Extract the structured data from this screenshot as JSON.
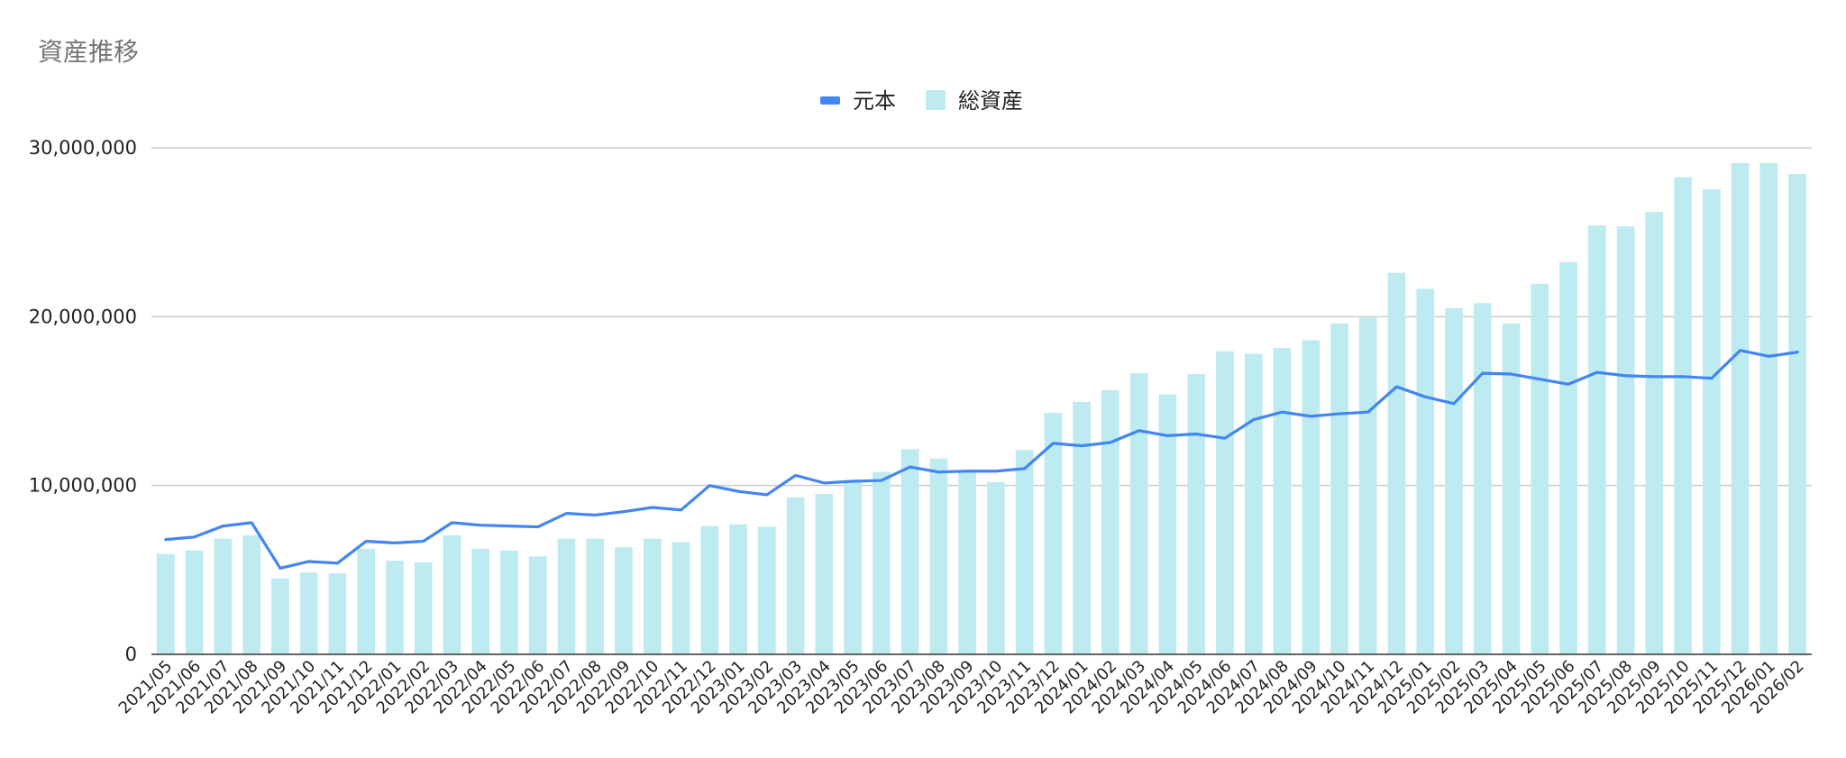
{
  "chart_data": {
    "type": "bar",
    "title": "資産推移",
    "xlabel": "",
    "ylabel": "",
    "ylim": [
      0,
      30000000
    ],
    "yticks": [
      0,
      10000000,
      20000000,
      30000000
    ],
    "ytick_labels": [
      "0",
      "10,000,000",
      "20,000,000",
      "30,000,000"
    ],
    "grid": true,
    "legend_position": "top",
    "categories": [
      "2021/05",
      "2021/06",
      "2021/07",
      "2021/08",
      "2021/09",
      "2021/10",
      "2021/11",
      "2021/12",
      "2022/01",
      "2022/02",
      "2022/03",
      "2022/04",
      "2022/05",
      "2022/06",
      "2022/07",
      "2022/08",
      "2022/09",
      "2022/10",
      "2022/11",
      "2022/12",
      "2023/01",
      "2023/02",
      "2023/03",
      "2023/04",
      "2023/05",
      "2023/06",
      "2023/07",
      "2023/08",
      "2023/09",
      "2023/10",
      "2023/11",
      "2023/12",
      "2024/01",
      "2024/02",
      "2024/03",
      "2024/04",
      "2024/05",
      "2024/06",
      "2024/07",
      "2024/08",
      "2024/09",
      "2024/10",
      "2024/11",
      "2024/12",
      "2025/01",
      "2025/02",
      "2025/03",
      "2025/04",
      "2025/05",
      "2025/06",
      "2025/07",
      "2025/08",
      "2025/09",
      "2025/10",
      "2025/11",
      "2025/12",
      "2026/01",
      "2026/02"
    ],
    "series": [
      {
        "name": "元本",
        "type": "line",
        "color": "#4285f4",
        "values": [
          6800000,
          6950000,
          7600000,
          7800000,
          5100000,
          5500000,
          5400000,
          6700000,
          6600000,
          6700000,
          7800000,
          7650000,
          7600000,
          7550000,
          8350000,
          8250000,
          8450000,
          8700000,
          8550000,
          10000000,
          9650000,
          9450000,
          10600000,
          10150000,
          10250000,
          10300000,
          11100000,
          10800000,
          10850000,
          10850000,
          11000000,
          12500000,
          12350000,
          12550000,
          13250000,
          12950000,
          13050000,
          12800000,
          13900000,
          14350000,
          14100000,
          14250000,
          14350000,
          15850000,
          15250000,
          14850000,
          16650000,
          16600000,
          16300000,
          16000000,
          16700000,
          16500000,
          16450000,
          16450000,
          16350000,
          18000000,
          17650000,
          17900000
        ]
      },
      {
        "name": "総資産",
        "type": "bar",
        "color": "#bdebf0",
        "values": [
          5950000,
          6150000,
          6850000,
          7050000,
          4500000,
          4850000,
          4800000,
          6250000,
          5550000,
          5450000,
          7050000,
          6250000,
          6150000,
          5800000,
          6850000,
          6850000,
          6350000,
          6850000,
          6650000,
          7600000,
          7700000,
          7550000,
          9300000,
          9500000,
          10200000,
          10800000,
          12150000,
          11600000,
          10800000,
          10200000,
          12100000,
          14300000,
          14950000,
          15650000,
          16650000,
          15400000,
          16600000,
          17950000,
          17800000,
          18150000,
          18600000,
          19600000,
          19950000,
          22600000,
          21650000,
          20500000,
          20800000,
          19600000,
          21950000,
          23250000,
          25400000,
          25350000,
          26200000,
          28250000,
          27550000,
          29100000,
          29100000,
          28450000
        ]
      }
    ]
  }
}
